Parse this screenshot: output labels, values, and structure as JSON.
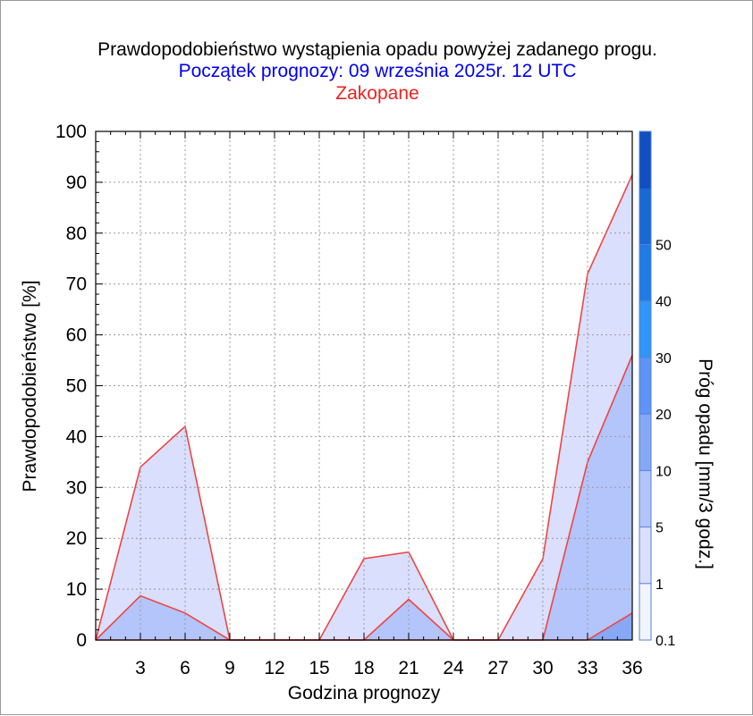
{
  "header": {
    "title": "Prawdopodobieństwo wystąpienia opadu powyżej zadanego progu.",
    "subtitle": "Początek prognozy: 09 września 2025r. 12 UTC",
    "location": "Zakopane"
  },
  "chart_data": {
    "type": "area",
    "xlabel": "Godzina prognozy",
    "ylabel": "Prawdopodobieństwo [%]",
    "x": [
      0,
      3,
      6,
      9,
      12,
      15,
      18,
      21,
      24,
      27,
      30,
      33,
      36
    ],
    "xticks": [
      3,
      6,
      9,
      12,
      15,
      18,
      21,
      24,
      27,
      30,
      33,
      36
    ],
    "xlim": [
      0,
      36
    ],
    "ylim": [
      0,
      100
    ],
    "yticks": [
      0,
      10,
      20,
      30,
      40,
      50,
      60,
      70,
      80,
      90,
      100
    ],
    "grid": true,
    "series": [
      {
        "threshold": 0.1,
        "fill": "#d9dffd",
        "values": [
          0,
          34,
          42,
          0,
          0,
          0,
          16,
          17.3,
          0,
          0,
          16,
          72,
          91.5
        ]
      },
      {
        "threshold": 1,
        "fill": "#b3c5fa",
        "values": [
          0,
          8.7,
          5.3,
          0,
          0,
          0,
          0,
          8,
          0,
          0,
          0,
          35,
          56
        ]
      },
      {
        "threshold": 5,
        "fill": "#86a8f5",
        "values": [
          0,
          0,
          0,
          0,
          0,
          0,
          0,
          0,
          0,
          0,
          0,
          0,
          5.3
        ]
      }
    ],
    "outline_color": "#ee4444",
    "colorbar": {
      "label": "Próg opadu [mm/3 godz.]",
      "ticks": [
        "0.1",
        "1",
        "5",
        "10",
        "20",
        "30",
        "40",
        "50"
      ],
      "colors": [
        "#f2f4fe",
        "#d9dffd",
        "#b3c5fa",
        "#86a8f5",
        "#5c95f5",
        "#2f96f5",
        "#1f7be6",
        "#1868d6",
        "#0f4fbf"
      ]
    }
  }
}
